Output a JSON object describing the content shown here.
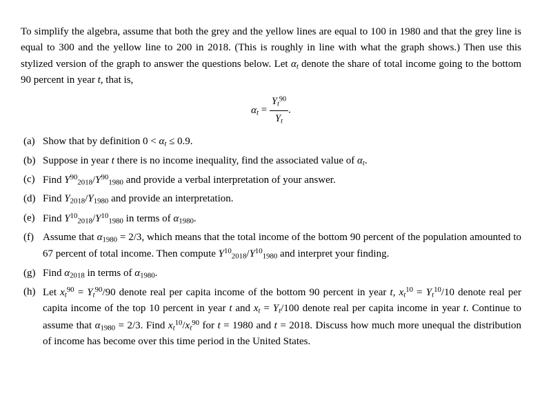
{
  "intro_html": "To simplify the algebra, assume that both the grey and the yellow lines are equal to 100 in 1980 and that the grey line is equal to 300 and the yellow line to 200 in 2018. (This is roughly in line with what the graph shows.) Then use this stylized version of the graph to answer the questions below. Let <span class='it'>α<sub>t</sub></span> denote the share of total income going to the bottom 90 percent in year <span class='it'>t</span>, that is,",
  "equation_html": "<span class='it'>α<sub>t</sub></span> = <span class='frac'><span class='num'><span class='it'>Y</span><sub><span class='it'>t</span></sub><sup>90</sup></span><span class='den'><span class='it'>Y<sub>t</sub></span></span></span>.",
  "items": [
    {
      "marker": "(a)",
      "html": "Show that by definition 0 &lt; <span class='it'>α<sub>t</sub></span> ≤ 0.9."
    },
    {
      "marker": "(b)",
      "html": "Suppose in year <span class='it'>t</span> there is no income inequality, find the associated value of <span class='it'>α<sub>t</sub></span>."
    },
    {
      "marker": "(c)",
      "html": "Find <span class='it'>Y</span><sup>90</sup><sub>2018</sub>/<span class='it'>Y</span><sup>90</sup><sub>1980</sub> and provide a verbal interpretation of your answer."
    },
    {
      "marker": "(d)",
      "html": "Find <span class='it'>Y</span><sub>2018</sub>/<span class='it'>Y</span><sub>1980</sub> and provide an interpretation."
    },
    {
      "marker": "(e)",
      "html": "Find <span class='it'>Y</span><sup>10</sup><sub>2018</sub>/<span class='it'>Y</span><sup>10</sup><sub>1980</sub> in terms of <span class='it'>α</span><sub>1980</sub>."
    },
    {
      "marker": "(f)",
      "html": "Assume that <span class='it'>α</span><sub>1980</sub> = 2/3, which means that the total income of the bottom 90 percent of the population amounted to 67 percent of total income. Then compute <span class='it'>Y</span><sup>10</sup><sub>2018</sub>/<span class='it'>Y</span><sup>10</sup><sub>1980</sub> and interpret your finding."
    },
    {
      "marker": "(g)",
      "html": "Find <span class='it'>α</span><sub>2018</sub> in terms of <span class='it'>α</span><sub>1980</sub>."
    },
    {
      "marker": "(h)",
      "html": "Let <span class='it'>x</span><sub><span class='it'>t</span></sub><sup>90</sup> = <span class='it'>Y</span><sub><span class='it'>t</span></sub><sup>90</sup>/90 denote real per capita income of the bottom 90 percent in year <span class='it'>t</span>, <span class='it'>x</span><sub><span class='it'>t</span></sub><sup>10</sup> = <span class='it'>Y</span><sub><span class='it'>t</span></sub><sup>10</sup>/10 denote real per capita income of the top 10 percent in year <span class='it'>t</span> and <span class='it'>x<sub>t</sub></span> = <span class='it'>Y<sub>t</sub></span>/100 denote real per capita income in year <span class='it'>t</span>. Continue to assume that <span class='it'>α</span><sub>1980</sub> = 2/3. Find <span class='it'>x</span><sub><span class='it'>t</span></sub><sup>10</sup>/<span class='it'>x</span><sub><span class='it'>t</span></sub><sup>90</sup> for <span class='it'>t</span> = 1980 and <span class='it'>t</span> = 2018. Discuss how much more unequal the distribution of income has become over this time period in the United States."
    }
  ]
}
